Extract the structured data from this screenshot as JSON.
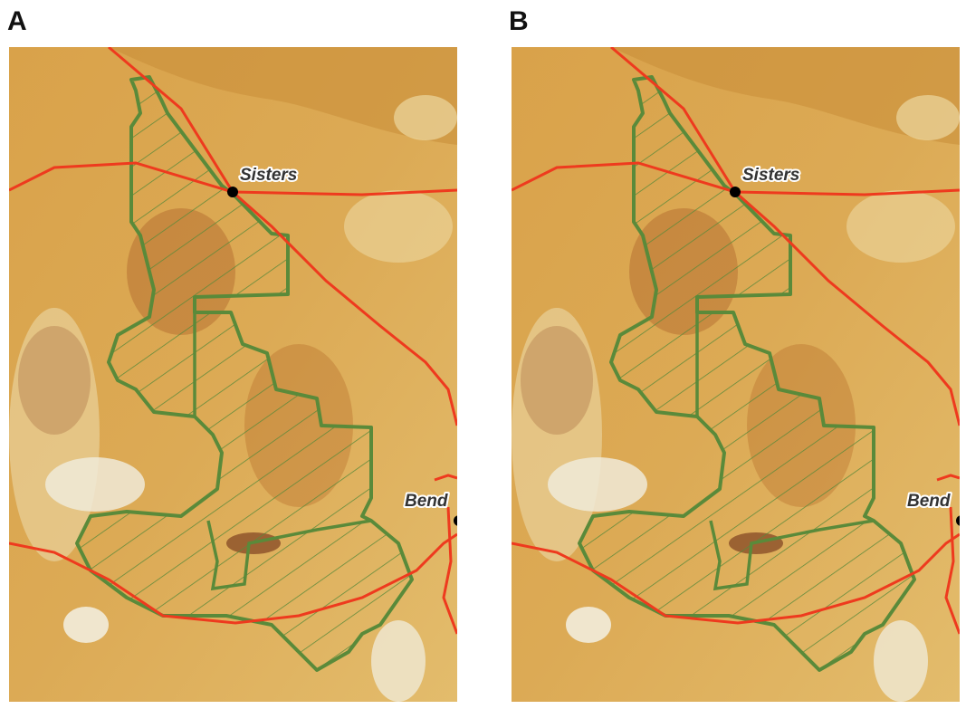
{
  "panels": [
    {
      "label": "A",
      "places": [
        "Sisters",
        "Bend"
      ]
    },
    {
      "label": "B",
      "places": [
        "Sisters",
        "Bend"
      ]
    }
  ]
}
